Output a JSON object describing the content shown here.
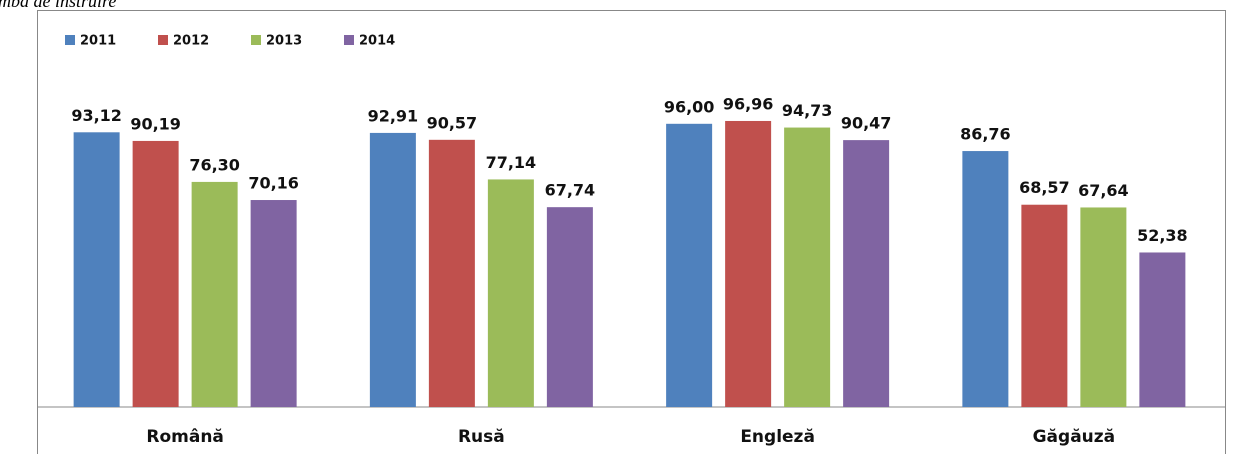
{
  "chart_data": {
    "type": "bar",
    "caption": "mba de instruire",
    "categories": [
      "Română",
      "Rusă",
      "Engleză",
      "Găgăuză"
    ],
    "series": [
      {
        "name": "2011",
        "color": "#4f81bd",
        "values": [
          93.12,
          92.91,
          96.0,
          86.76
        ],
        "value_labels": [
          "93,12",
          "92,91",
          "96,00",
          "86,76"
        ]
      },
      {
        "name": "2012",
        "color": "#c0504d",
        "values": [
          90.19,
          90.57,
          96.96,
          68.57
        ],
        "value_labels": [
          "90,19",
          "90,57",
          "96,96",
          "68,57"
        ]
      },
      {
        "name": "2013",
        "color": "#9bbb59",
        "values": [
          76.3,
          77.14,
          94.73,
          67.64
        ],
        "value_labels": [
          "76,30",
          "77,14",
          "94,73",
          "67,64"
        ]
      },
      {
        "name": "2014",
        "color": "#8064a2",
        "values": [
          70.16,
          67.74,
          90.47,
          52.38
        ],
        "value_labels": [
          "70,16",
          "67,74",
          "90,47",
          "52,38"
        ]
      }
    ],
    "ylim": [
      0,
      100
    ],
    "legend": "top-left"
  }
}
